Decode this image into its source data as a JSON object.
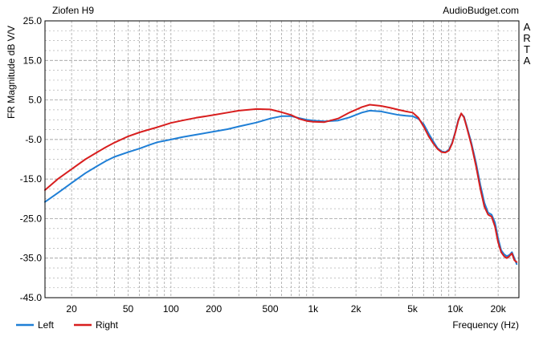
{
  "chart_data": {
    "type": "line",
    "title": "Ziofen H9",
    "watermark": "AudioBudget.com",
    "side_label": [
      "A",
      "R",
      "T",
      "A"
    ],
    "xlabel": "Frequency (Hz)",
    "ylabel": "FR Magnitude dB V/V",
    "x_scale": "log",
    "xlim": [
      13,
      28000
    ],
    "ylim": [
      -45,
      25
    ],
    "grid": true,
    "legend_position": "bottom-left",
    "x_ticks": [
      {
        "value": 20,
        "label": "20"
      },
      {
        "value": 50,
        "label": "50"
      },
      {
        "value": 100,
        "label": "100"
      },
      {
        "value": 200,
        "label": "200"
      },
      {
        "value": 500,
        "label": "500"
      },
      {
        "value": 1000,
        "label": "1k"
      },
      {
        "value": 2000,
        "label": "2k"
      },
      {
        "value": 5000,
        "label": "5k"
      },
      {
        "value": 10000,
        "label": "10k"
      },
      {
        "value": 20000,
        "label": "20k"
      }
    ],
    "y_ticks": [
      {
        "value": 25,
        "label": "25.0"
      },
      {
        "value": 15,
        "label": "15.0"
      },
      {
        "value": 5,
        "label": "5.0"
      },
      {
        "value": -5,
        "label": "-5.0"
      },
      {
        "value": -15,
        "label": "-15.0"
      },
      {
        "value": -25,
        "label": "-25.0"
      },
      {
        "value": -35,
        "label": "-35.0"
      },
      {
        "value": -45,
        "label": "-45.0"
      }
    ],
    "series": [
      {
        "name": "Left",
        "color": "#1f7fd6",
        "points": [
          [
            13,
            -20.8
          ],
          [
            16,
            -18.5
          ],
          [
            20,
            -16
          ],
          [
            25,
            -13.5
          ],
          [
            30,
            -11.8
          ],
          [
            35,
            -10.4
          ],
          [
            40,
            -9.4
          ],
          [
            50,
            -8.2
          ],
          [
            60,
            -7.3
          ],
          [
            70,
            -6.4
          ],
          [
            80,
            -5.7
          ],
          [
            100,
            -5.0
          ],
          [
            120,
            -4.4
          ],
          [
            150,
            -3.8
          ],
          [
            200,
            -3.0
          ],
          [
            250,
            -2.4
          ],
          [
            300,
            -1.7
          ],
          [
            400,
            -0.7
          ],
          [
            500,
            0.3
          ],
          [
            600,
            0.9
          ],
          [
            700,
            0.9
          ],
          [
            800,
            0.4
          ],
          [
            900,
            0.0
          ],
          [
            1000,
            -0.2
          ],
          [
            1200,
            -0.4
          ],
          [
            1500,
            -0.2
          ],
          [
            1800,
            0.6
          ],
          [
            2200,
            1.8
          ],
          [
            2500,
            2.3
          ],
          [
            3000,
            2.1
          ],
          [
            3500,
            1.6
          ],
          [
            4000,
            1.2
          ],
          [
            4500,
            1.0
          ],
          [
            5000,
            0.9
          ],
          [
            5500,
            0.2
          ],
          [
            6000,
            -1.2
          ],
          [
            6500,
            -3.5
          ],
          [
            7000,
            -5.5
          ],
          [
            7500,
            -7.2
          ],
          [
            8000,
            -8.0
          ],
          [
            8500,
            -8.2
          ],
          [
            9000,
            -7.6
          ],
          [
            9500,
            -5.8
          ],
          [
            10000,
            -3.0
          ],
          [
            10500,
            0.0
          ],
          [
            11000,
            1.5
          ],
          [
            11500,
            0.8
          ],
          [
            12000,
            -1.5
          ],
          [
            13000,
            -6.0
          ],
          [
            14000,
            -11.0
          ],
          [
            15000,
            -16.5
          ],
          [
            16000,
            -21.0
          ],
          [
            17000,
            -23.5
          ],
          [
            18000,
            -24.0
          ],
          [
            19000,
            -26.0
          ],
          [
            20000,
            -30.0
          ],
          [
            21000,
            -33.0
          ],
          [
            22000,
            -34.0
          ],
          [
            23000,
            -34.5
          ],
          [
            24000,
            -34.2
          ],
          [
            25000,
            -33.5
          ],
          [
            26000,
            -35.0
          ],
          [
            27000,
            -36.5
          ]
        ]
      },
      {
        "name": "Right",
        "color": "#d81e1e",
        "points": [
          [
            13,
            -17.8
          ],
          [
            16,
            -15.0
          ],
          [
            20,
            -12.5
          ],
          [
            25,
            -10.0
          ],
          [
            30,
            -8.3
          ],
          [
            35,
            -6.9
          ],
          [
            40,
            -5.8
          ],
          [
            50,
            -4.2
          ],
          [
            60,
            -3.2
          ],
          [
            70,
            -2.5
          ],
          [
            80,
            -1.9
          ],
          [
            100,
            -0.8
          ],
          [
            120,
            -0.2
          ],
          [
            150,
            0.5
          ],
          [
            200,
            1.2
          ],
          [
            250,
            1.8
          ],
          [
            300,
            2.3
          ],
          [
            400,
            2.7
          ],
          [
            500,
            2.6
          ],
          [
            600,
            1.9
          ],
          [
            700,
            1.2
          ],
          [
            800,
            0.2
          ],
          [
            900,
            -0.3
          ],
          [
            1000,
            -0.5
          ],
          [
            1200,
            -0.6
          ],
          [
            1500,
            0.3
          ],
          [
            1800,
            1.8
          ],
          [
            2200,
            3.2
          ],
          [
            2500,
            3.8
          ],
          [
            3000,
            3.5
          ],
          [
            3500,
            3.0
          ],
          [
            4000,
            2.5
          ],
          [
            4500,
            2.1
          ],
          [
            5000,
            1.8
          ],
          [
            5500,
            0.5
          ],
          [
            6000,
            -1.8
          ],
          [
            6500,
            -4.2
          ],
          [
            7000,
            -6.0
          ],
          [
            7500,
            -7.4
          ],
          [
            8000,
            -8.2
          ],
          [
            8500,
            -8.3
          ],
          [
            9000,
            -7.8
          ],
          [
            9500,
            -6.0
          ],
          [
            10000,
            -3.2
          ],
          [
            10500,
            -0.2
          ],
          [
            11000,
            1.6
          ],
          [
            11500,
            0.6
          ],
          [
            12000,
            -1.8
          ],
          [
            13000,
            -6.5
          ],
          [
            14000,
            -11.8
          ],
          [
            15000,
            -17.5
          ],
          [
            16000,
            -22.0
          ],
          [
            17000,
            -24.0
          ],
          [
            18000,
            -24.5
          ],
          [
            19000,
            -27.0
          ],
          [
            20000,
            -31.0
          ],
          [
            21000,
            -33.5
          ],
          [
            22000,
            -34.5
          ],
          [
            23000,
            -35.0
          ],
          [
            24000,
            -34.5
          ],
          [
            25000,
            -33.8
          ],
          [
            26000,
            -35.5
          ],
          [
            27000,
            -36.0
          ]
        ]
      }
    ]
  }
}
